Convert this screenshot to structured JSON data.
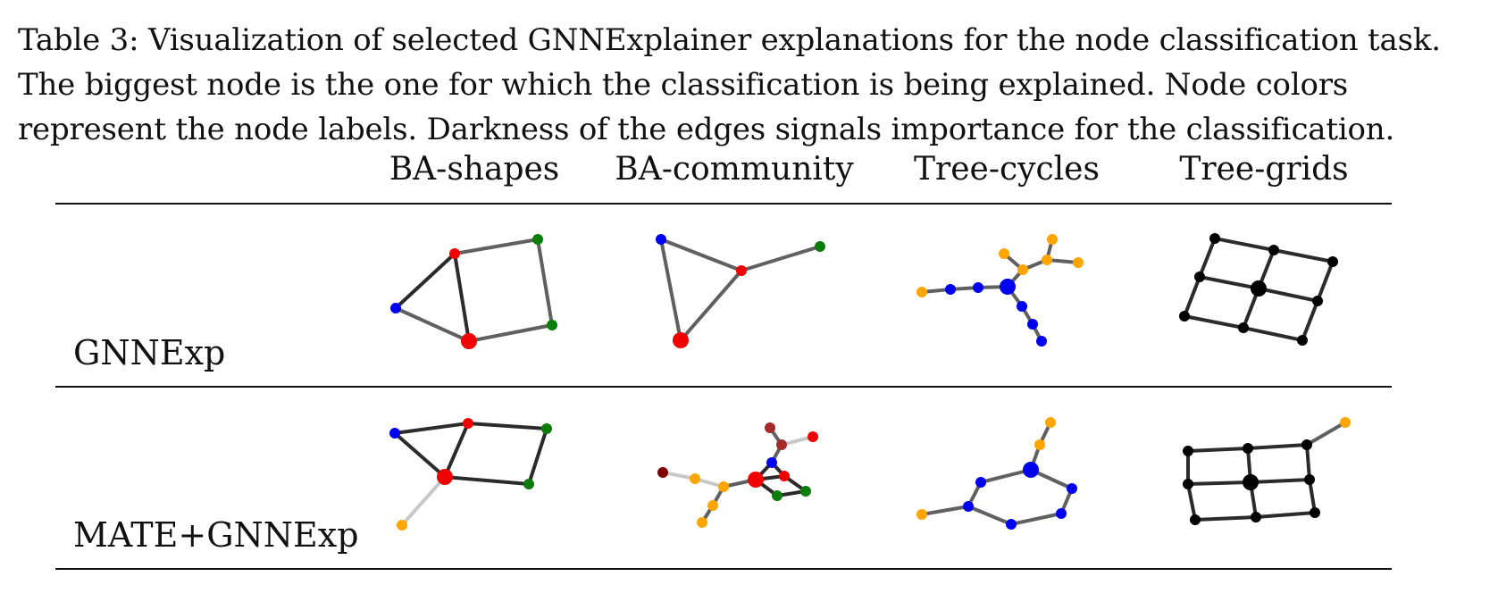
{
  "caption": {
    "lines": [
      "Table 3: Visualization of selected GNNExplainer explanations for the node classification task.",
      "The biggest node is the one for which the classification is being explained.  Node colors",
      "represent the node labels. Darkness of the edges signals importance for the classification."
    ]
  },
  "table": {
    "columns": [
      "BA-shapes",
      "BA-community",
      "Tree-cycles",
      "Tree-grids"
    ],
    "rows": [
      "GNNExp",
      "MATE+GNNExp"
    ]
  },
  "colors": {
    "red": "#f00000",
    "blue": "#0000f0",
    "green": "#0a7d0a",
    "orange": "#ffa500",
    "black": "#000000",
    "brown": "#a52a2a",
    "darkred": "#800000",
    "edge_dark": "#2b2b2b",
    "edge_mid": "#606060",
    "edge_light": "#c8c8c8"
  }
}
